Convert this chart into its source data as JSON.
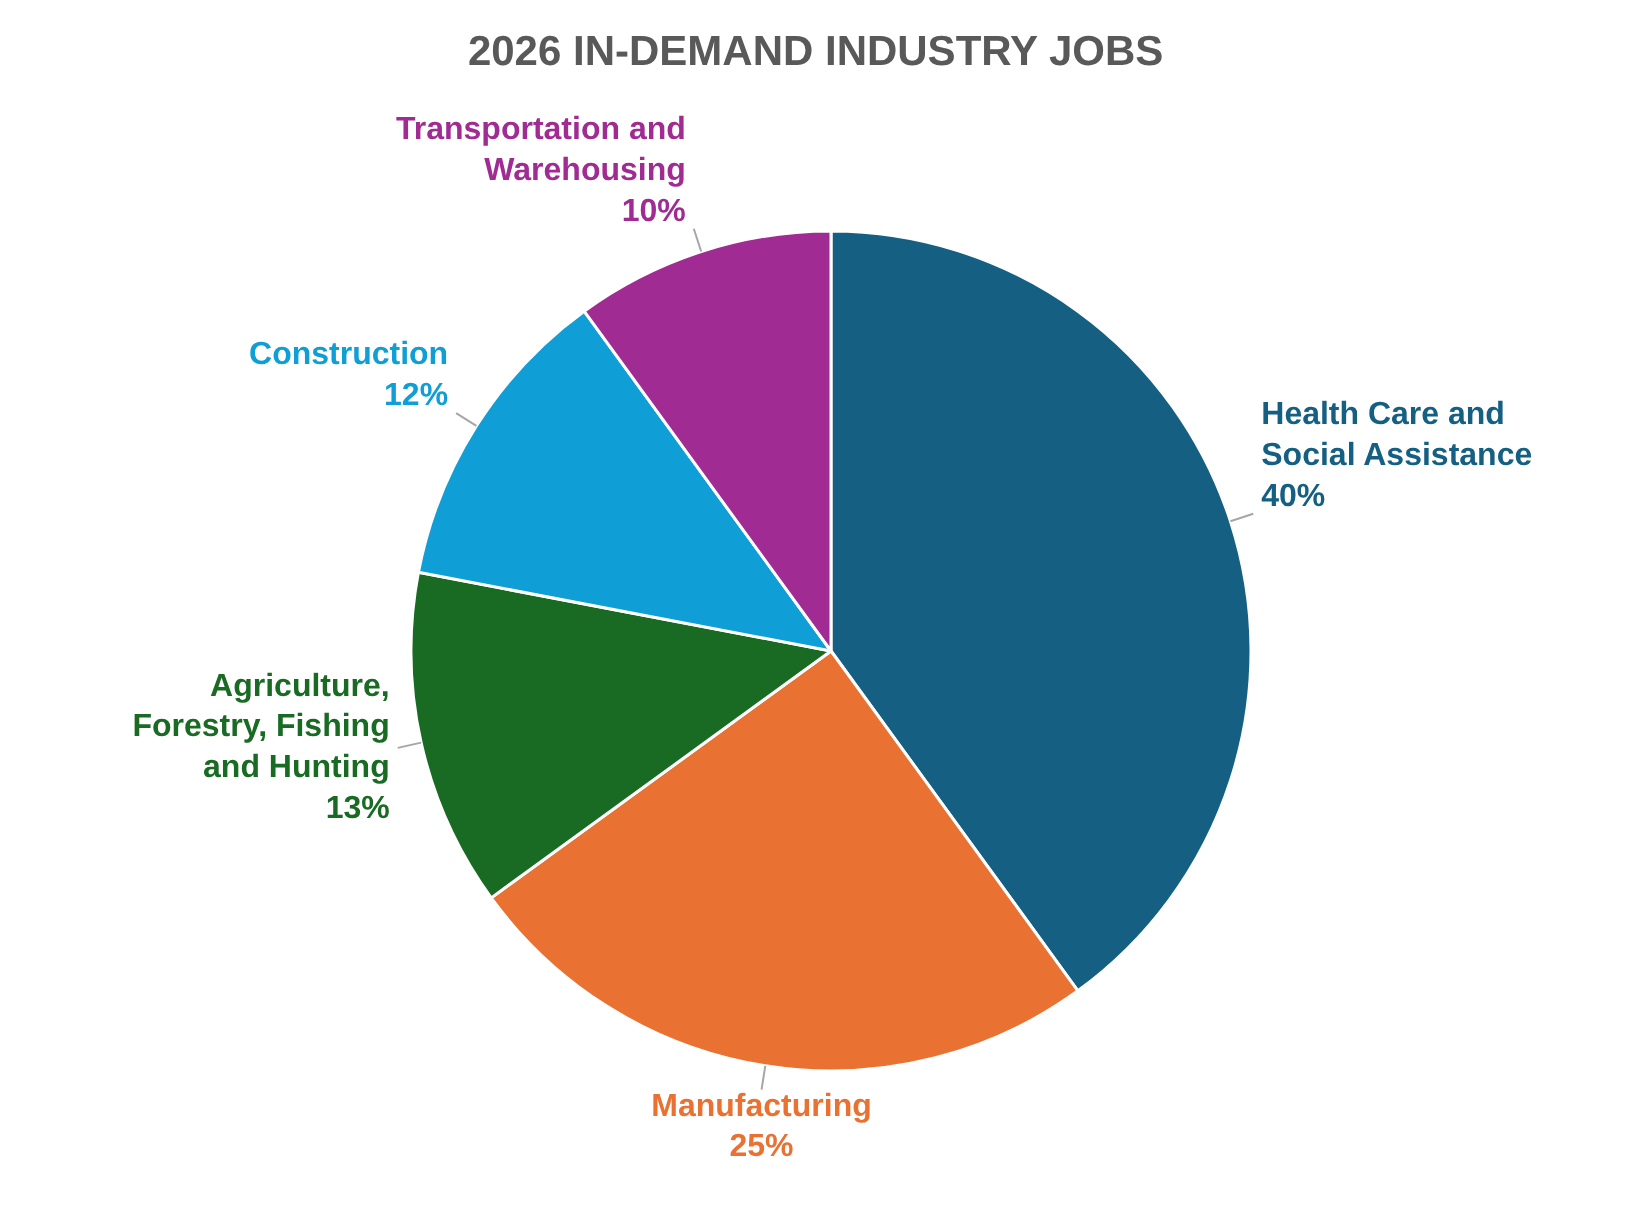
{
  "chart_data": {
    "type": "pie",
    "title": "2026 IN-DEMAND INDUSTRY JOBS",
    "categories": [
      "Health Care and\nSocial Assistance",
      "Manufacturing",
      "Agriculture,\nForestry, Fishing\nand Hunting",
      "Construction",
      "Transportation and\nWarehousing"
    ],
    "values": [
      40,
      25,
      13,
      12,
      10
    ],
    "value_labels": [
      "40%",
      "25%",
      "13%",
      "12%",
      "10%"
    ],
    "colors": [
      "#156082",
      "#e97132",
      "#196b24",
      "#0f9ed5",
      "#a02b93"
    ]
  }
}
